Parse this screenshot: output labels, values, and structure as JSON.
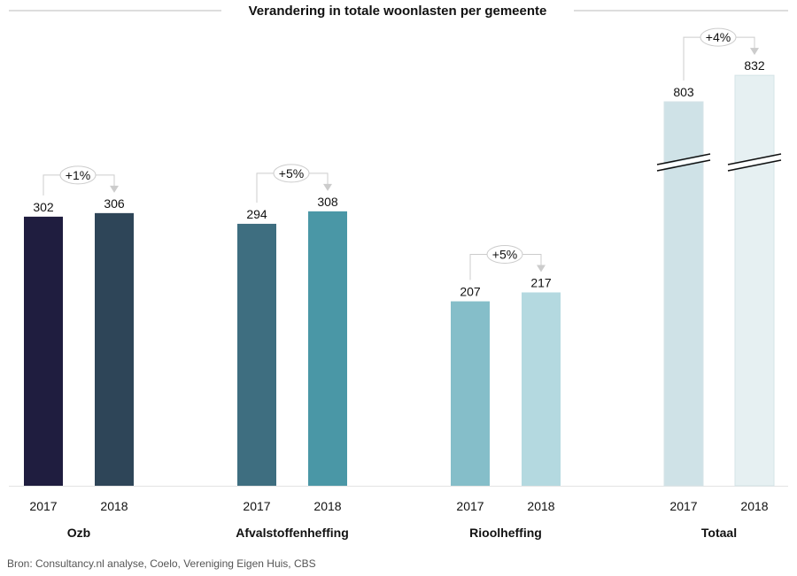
{
  "chart_data": {
    "type": "bar",
    "title": "Verandering in totale woonlasten per gemeente",
    "groups": [
      "Ozb",
      "Afvalstoffenheffing",
      "Rioolheffing",
      "Totaal"
    ],
    "categories": [
      "2017",
      "2018"
    ],
    "values": [
      [
        302,
        306
      ],
      [
        294,
        308
      ],
      [
        207,
        217
      ],
      [
        803,
        832
      ]
    ],
    "changes": [
      "+1%",
      "+5%",
      "+5%",
      "+4%"
    ],
    "colors": [
      [
        "#1f1d3f",
        "#2e4558"
      ],
      [
        "#3e6e80",
        "#4a97a6"
      ],
      [
        "#85bec9",
        "#b4d9e0"
      ],
      [
        "#cfe2e7",
        "#e6f0f2"
      ]
    ],
    "broken_axis_group": "Totaal",
    "grid": false,
    "source": "Bron: Consultancy.nl analyse, Coelo, Vereniging Eigen Huis, CBS"
  }
}
